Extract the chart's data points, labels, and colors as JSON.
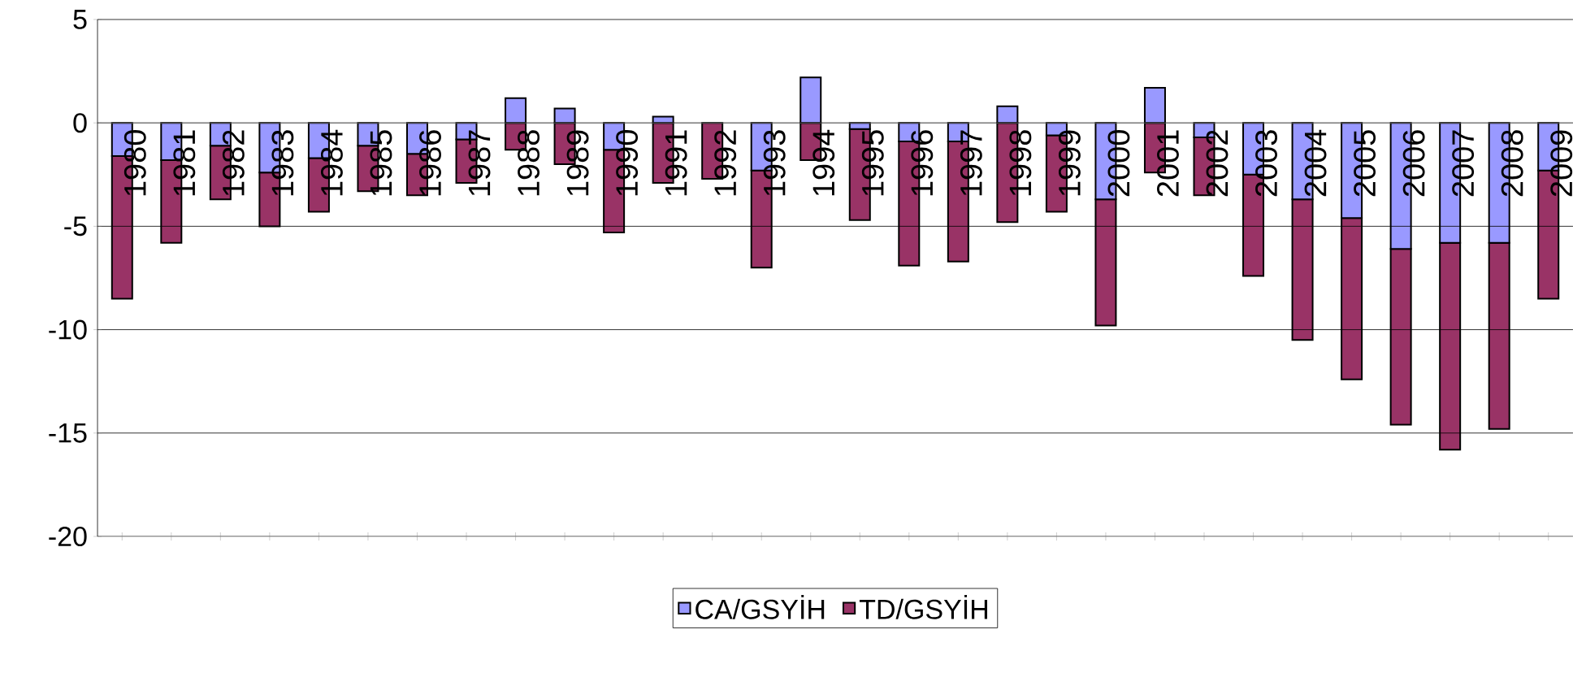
{
  "chart_data": {
    "type": "bar",
    "stacked": true,
    "categories": [
      "1980",
      "1981",
      "1982",
      "1983",
      "1984",
      "1985",
      "1986",
      "1987",
      "1988",
      "1989",
      "1990",
      "1991",
      "1992",
      "1993",
      "1994",
      "1995",
      "1996",
      "1997",
      "1998",
      "1999",
      "2000",
      "2001",
      "2002",
      "2003",
      "2004",
      "2005",
      "2006",
      "2007",
      "2008",
      "2009"
    ],
    "series": [
      {
        "name": "CA/GSYİH",
        "color": "#9999ff",
        "values": [
          -1.6,
          -1.8,
          -1.1,
          -2.4,
          -1.7,
          -1.1,
          -1.5,
          -0.8,
          1.2,
          0.7,
          -1.3,
          0.3,
          0,
          -2.3,
          2.2,
          -0.3,
          -0.9,
          -0.9,
          0.8,
          -0.6,
          -3.7,
          1.7,
          -0.7,
          -2.5,
          -3.7,
          -4.6,
          -6.1,
          -5.8,
          -5.8,
          -2.3
        ]
      },
      {
        "name": "TD/GSYİH",
        "color": "#993366",
        "values": [
          -6.9,
          -4.0,
          -2.6,
          -2.6,
          -2.6,
          -2.2,
          -2.0,
          -2.1,
          -1.3,
          -2.0,
          -4.0,
          -2.9,
          -2.7,
          -4.7,
          -1.8,
          -4.4,
          -6.0,
          -5.8,
          -4.8,
          -3.7,
          -6.1,
          -2.4,
          -2.8,
          -4.9,
          -6.8,
          -7.8,
          -8.5,
          -10.0,
          -9.0,
          -6.2
        ]
      }
    ],
    "ylim": [
      -20,
      5
    ],
    "yticks": [
      -20,
      -15,
      -10,
      -5,
      0,
      5
    ],
    "grid": "y",
    "legend": "bottom"
  }
}
